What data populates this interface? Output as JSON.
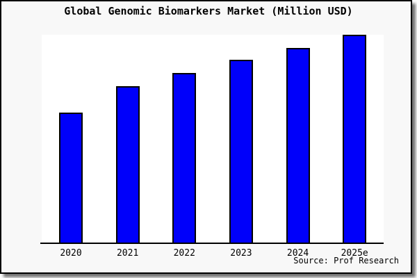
{
  "figure": {
    "title": "Global Genomic Biomarkers Market (Million USD)",
    "source": "Source: Prof Research",
    "colors": {
      "figure_background": "#f8f8f8",
      "plot_background": "#ffffff",
      "bar_fill": "#0000fa",
      "bar_edge": "#000000",
      "border": "#000000",
      "text": "#000000"
    }
  },
  "chart_data": {
    "type": "bar",
    "title": "Global Genomic Biomarkers Market (Million USD)",
    "categories": [
      "2020",
      "2021",
      "2022",
      "2023",
      "2024",
      "2025e"
    ],
    "values": [
      187,
      225,
      244,
      263,
      280,
      299
    ],
    "values_unit": "relative bar height in px; no y-axis tick labels are visible in the image",
    "xlabel": "",
    "ylabel": "",
    "ylim": [
      0,
      300
    ],
    "grid": false,
    "legend": false,
    "y_axis_visible": false,
    "x_axis_visible": true,
    "annotations": [
      "Source: Prof Research"
    ]
  }
}
